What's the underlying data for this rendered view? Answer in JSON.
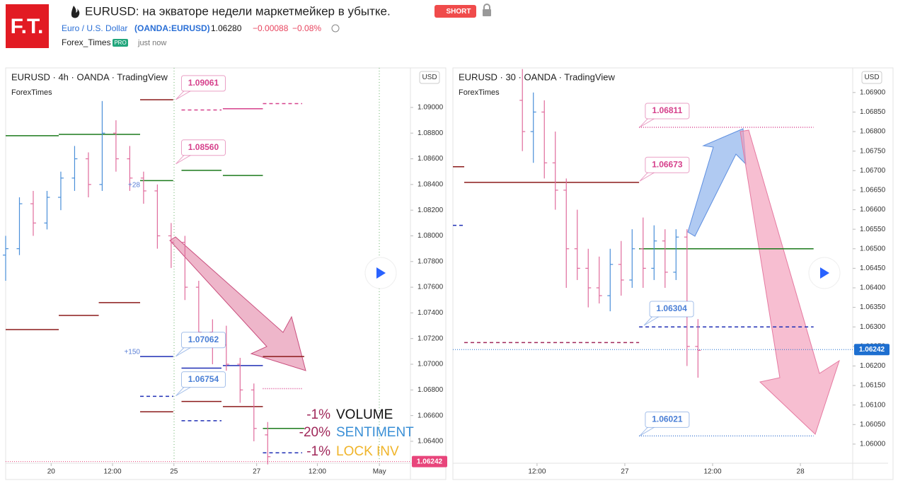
{
  "header": {
    "logo": "F.T.",
    "title": "EURUSD: на экваторе недели маркетмейкер в убытке.",
    "badge": "SHORT",
    "symbol_name": "Euro / U.S. Dollar",
    "symbol_code": "(OANDA:EURUSD)",
    "price": "1.06280",
    "change": "−0.00088",
    "change_pct": "−0.08%",
    "author": "Forex_Times",
    "author_badge": "PRO",
    "time": "just now"
  },
  "chart_data": [
    {
      "type": "candlestick",
      "title": "EURUSD · 4h · OANDA · TradingView",
      "subtitle": "ForexTimes",
      "currency": "USD",
      "up_color": "#4a8fd9",
      "down_color": "#e06b9c",
      "xlim": [
        0,
        58.7
      ],
      "ylim": [
        1.06229,
        1.09308
      ],
      "xticks": [
        {
          "value": 6.6,
          "label": "20"
        },
        {
          "value": 15.5,
          "label": "12:00"
        },
        {
          "value": 24.4,
          "label": "25"
        },
        {
          "value": 36.4,
          "label": "27"
        },
        {
          "value": 45.2,
          "label": "12:00"
        },
        {
          "value": 54.2,
          "label": "May"
        }
      ],
      "yticks": [
        {
          "value": 1.064,
          "label": "1.06400"
        },
        {
          "value": 1.066,
          "label": "1.06600"
        },
        {
          "value": 1.068,
          "label": "1.06800"
        },
        {
          "value": 1.07,
          "label": "1.07000"
        },
        {
          "value": 1.072,
          "label": "1.07200"
        },
        {
          "value": 1.074,
          "label": "1.07400"
        },
        {
          "value": 1.076,
          "label": "1.07600"
        },
        {
          "value": 1.078,
          "label": "1.07800"
        },
        {
          "value": 1.08,
          "label": "1.08000"
        },
        {
          "value": 1.082,
          "label": "1.08200"
        },
        {
          "value": 1.084,
          "label": "1.08400"
        },
        {
          "value": 1.086,
          "label": "1.08600"
        },
        {
          "value": 1.088,
          "label": "1.08800"
        },
        {
          "value": 1.09,
          "label": "1.09000"
        }
      ],
      "x": [
        0,
        2,
        4,
        6,
        8,
        10,
        12,
        14,
        16,
        18,
        20,
        22,
        24,
        26,
        28,
        30,
        32,
        34,
        36,
        38
      ],
      "open": [
        1.0785,
        1.079,
        1.0825,
        1.081,
        1.083,
        1.0845,
        1.086,
        1.084,
        1.088,
        1.086,
        1.0845,
        1.0835,
        1.08,
        1.0795,
        1.076,
        1.0725,
        1.0715,
        1.07,
        1.068,
        1.0645
      ],
      "high": [
        1.08,
        1.083,
        1.0835,
        1.0835,
        1.085,
        1.087,
        1.0865,
        1.0905,
        1.089,
        1.087,
        1.085,
        1.084,
        1.081,
        1.08,
        1.0765,
        1.0735,
        1.073,
        1.0705,
        1.0685,
        1.0655
      ],
      "low": [
        1.0765,
        1.0785,
        1.08,
        1.0805,
        1.082,
        1.0835,
        1.083,
        1.0835,
        1.085,
        1.0835,
        1.0825,
        1.079,
        1.0775,
        1.075,
        1.0715,
        1.07,
        1.0695,
        1.067,
        1.064,
        1.0622
      ],
      "close": [
        1.079,
        1.0825,
        1.081,
        1.083,
        1.0845,
        1.086,
        1.084,
        1.088,
        1.086,
        1.0845,
        1.0835,
        1.08,
        1.0795,
        1.076,
        1.0725,
        1.0715,
        1.07,
        1.068,
        1.065,
        1.0628
      ],
      "levels": [
        {
          "value": 1.0878,
          "x": [
            0,
            7.7
          ],
          "color": "#1b7a1b",
          "dash": "solid"
        },
        {
          "value": 1.0879,
          "x": [
            7.7,
            19.5
          ],
          "color": "#1b7a1b",
          "dash": "solid"
        },
        {
          "value": 1.0906,
          "x": [
            19.5,
            24.3
          ],
          "color": "#8b1a1a",
          "dash": "solid"
        },
        {
          "value": 1.0898,
          "x": [
            25.5,
            31.3
          ],
          "color": "#d6418c",
          "dash": "dashed"
        },
        {
          "value": 1.0899,
          "x": [
            31.5,
            37.3
          ],
          "color": "#d6418c",
          "dash": "solid"
        },
        {
          "value": 1.0903,
          "x": [
            37.3,
            43
          ],
          "color": "#d6418c",
          "dash": "dashed"
        },
        {
          "value": 1.0851,
          "x": [
            25.5,
            31.3
          ],
          "color": "#1b7a1b",
          "dash": "solid"
        },
        {
          "value": 1.0847,
          "x": [
            31.5,
            37.3
          ],
          "color": "#1b7a1b",
          "dash": "solid"
        },
        {
          "value": 1.0843,
          "x": [
            19.5,
            24.3
          ],
          "color": "#1b7a1b",
          "dash": "solid"
        },
        {
          "value": 1.0727,
          "x": [
            0,
            7.7
          ],
          "color": "#8b1a1a",
          "dash": "solid"
        },
        {
          "value": 1.0738,
          "x": [
            7.7,
            13.5
          ],
          "color": "#8b1a1a",
          "dash": "solid"
        },
        {
          "value": 1.0748,
          "x": [
            13.5,
            19.5
          ],
          "color": "#8b1a1a",
          "dash": "solid"
        },
        {
          "value": 1.0706,
          "x": [
            19.5,
            24.3
          ],
          "color": "#1f2fb5",
          "dash": "solid"
        },
        {
          "value": 1.0697,
          "x": [
            25.5,
            31.3
          ],
          "color": "#1f2fb5",
          "dash": "solid"
        },
        {
          "value": 1.0699,
          "x": [
            31.5,
            37.3
          ],
          "color": "#1f2fb5",
          "dash": "solid"
        },
        {
          "value": 1.0671,
          "x": [
            25.5,
            31.3
          ],
          "color": "#8b1a1a",
          "dash": "solid"
        },
        {
          "value": 1.0667,
          "x": [
            31.5,
            37.3
          ],
          "color": "#8b1a1a",
          "dash": "solid"
        },
        {
          "value": 1.0663,
          "x": [
            19.5,
            24.3
          ],
          "color": "#8b1a1a",
          "dash": "solid"
        },
        {
          "value": 1.0675,
          "x": [
            19.5,
            24.3
          ],
          "color": "#1f2fb5",
          "dash": "dashed"
        },
        {
          "value": 1.0656,
          "x": [
            25.5,
            31.3
          ],
          "color": "#1f2fb5",
          "dash": "dashed"
        },
        {
          "value": 1.0631,
          "x": [
            37.3,
            43
          ],
          "color": "#1f2fb5",
          "dash": "dashed"
        },
        {
          "value": 1.065,
          "x": [
            37.3,
            43.3
          ],
          "color": "#1b7a1b",
          "dash": "solid"
        },
        {
          "value": 1.0706,
          "x": [
            37.3,
            43.3
          ],
          "color": "#8b1a1a",
          "dash": "solid"
        },
        {
          "value": 1.0681,
          "x": [
            37.3,
            43
          ],
          "color": "#d6418c",
          "dash": "dotted"
        }
      ],
      "annotations": [
        {
          "value": 1.09061,
          "label": "1.09061",
          "x": 25.5,
          "color": "#d6418c"
        },
        {
          "value": 1.0856,
          "label": "1.08560",
          "x": 25.5,
          "color": "#d6418c"
        },
        {
          "value": 1.07062,
          "label": "1.07062",
          "x": 25.5,
          "color": "#4a7fd6"
        },
        {
          "value": 1.06754,
          "label": "1.06754",
          "x": 25.5,
          "color": "#4a7fd6"
        }
      ],
      "small_labels": [
        "+28",
        "+150"
      ],
      "notes": [
        {
          "pct": "-1%",
          "label": "VOLUME",
          "color": "#111111"
        },
        {
          "pct": "-20%",
          "label": "SENTIMENT",
          "color": "#3a8fd6"
        },
        {
          "pct": "-1%",
          "label": "LOCK INV",
          "color": "#f0b429"
        }
      ],
      "last": {
        "value": 1.06242,
        "label": "1.06242",
        "color": "#e8457b"
      }
    },
    {
      "type": "candlestick",
      "title": "EURUSD · 30 · OANDA · TradingView",
      "subtitle": "ForexTimes",
      "currency": "USD",
      "up_color": "#4a8fd9",
      "down_color": "#e06b9c",
      "xlim": [
        0,
        109.3
      ],
      "ylim": [
        1.05951,
        1.06963
      ],
      "xticks": [
        {
          "value": 23,
          "label": "12:00"
        },
        {
          "value": 47,
          "label": "27"
        },
        {
          "value": 71,
          "label": "12:00"
        },
        {
          "value": 95,
          "label": "28"
        }
      ],
      "yticks": [
        {
          "value": 1.06,
          "label": "1.06000"
        },
        {
          "value": 1.0605,
          "label": "1.06050"
        },
        {
          "value": 1.061,
          "label": "1.06100"
        },
        {
          "value": 1.0615,
          "label": "1.06150"
        },
        {
          "value": 1.062,
          "label": "1.06200"
        },
        {
          "value": 1.0625,
          "label": "1.06250"
        },
        {
          "value": 1.063,
          "label": "1.06300"
        },
        {
          "value": 1.0635,
          "label": "1.06350"
        },
        {
          "value": 1.064,
          "label": "1.06400"
        },
        {
          "value": 1.0645,
          "label": "1.06450"
        },
        {
          "value": 1.065,
          "label": "1.06500"
        },
        {
          "value": 1.0655,
          "label": "1.06550"
        },
        {
          "value": 1.066,
          "label": "1.06600"
        },
        {
          "value": 1.0665,
          "label": "1.06650"
        },
        {
          "value": 1.067,
          "label": "1.06700"
        },
        {
          "value": 1.0675,
          "label": "1.06750"
        },
        {
          "value": 1.068,
          "label": "1.06800"
        },
        {
          "value": 1.0685,
          "label": "1.06850"
        },
        {
          "value": 1.069,
          "label": "1.06900"
        }
      ],
      "x": [
        19,
        22,
        25,
        28,
        31,
        34,
        37,
        40,
        43,
        46,
        49,
        52,
        55,
        58,
        61,
        64,
        67
      ],
      "open": [
        1.0688,
        1.068,
        1.0685,
        1.0672,
        1.0665,
        1.065,
        1.0645,
        1.064,
        1.0638,
        1.0646,
        1.0642,
        1.065,
        1.0645,
        1.0652,
        1.0644,
        1.0653,
        1.0625
      ],
      "high": [
        1.0696,
        1.069,
        1.0688,
        1.068,
        1.0668,
        1.066,
        1.065,
        1.0648,
        1.065,
        1.0652,
        1.0655,
        1.0658,
        1.0656,
        1.0655,
        1.0655,
        1.0655,
        1.0632
      ],
      "low": [
        1.0675,
        1.0672,
        1.0668,
        1.066,
        1.064,
        1.0642,
        1.0635,
        1.0636,
        1.0634,
        1.0638,
        1.064,
        1.064,
        1.0642,
        1.064,
        1.0642,
        1.062,
        1.0617
      ],
      "close": [
        1.068,
        1.0685,
        1.0672,
        1.0665,
        1.065,
        1.0645,
        1.064,
        1.0638,
        1.0646,
        1.0642,
        1.065,
        1.0645,
        1.0652,
        1.0644,
        1.0653,
        1.0625,
        1.0624
      ],
      "levels": [
        {
          "value": 1.0671,
          "x": [
            0,
            3.1
          ],
          "color": "#8b1a1a",
          "dash": "solid"
        },
        {
          "value": 1.0667,
          "x": [
            3.1,
            50.9
          ],
          "color": "#8b1a1a",
          "dash": "solid"
        },
        {
          "value": 1.06811,
          "x": [
            50.9,
            98.6
          ],
          "color": "#d6418c",
          "dash": "dotted"
        },
        {
          "value": 1.065,
          "x": [
            50.9,
            98.6
          ],
          "color": "#1b7a1b",
          "dash": "solid"
        },
        {
          "value": 1.063,
          "x": [
            50.9,
            98.6
          ],
          "color": "#1f2fb5",
          "dash": "dashed"
        },
        {
          "value": 1.0626,
          "x": [
            3.1,
            50.9
          ],
          "color": "#a0285a",
          "dash": "dashed"
        },
        {
          "value": 1.0656,
          "x": [
            0,
            3.1
          ],
          "color": "#1f2fb5",
          "dash": "dashed"
        },
        {
          "value": 1.06021,
          "x": [
            50.9,
            98.6
          ],
          "color": "#4a7fd6",
          "dash": "dotted"
        }
      ],
      "annotations": [
        {
          "value": 1.06811,
          "label": "1.06811",
          "x": 52.6,
          "color": "#d6418c"
        },
        {
          "value": 1.06673,
          "label": "1.06673",
          "x": 52.6,
          "color": "#d6418c"
        },
        {
          "value": 1.06304,
          "label": "1.06304",
          "x": 53.8,
          "color": "#4a7fd6"
        },
        {
          "value": 1.06021,
          "label": "1.06021",
          "x": 52.6,
          "color": "#4a7fd6"
        }
      ],
      "last": {
        "value": 1.06242,
        "label": "1.06242",
        "color": "#1e6fd0"
      }
    }
  ]
}
